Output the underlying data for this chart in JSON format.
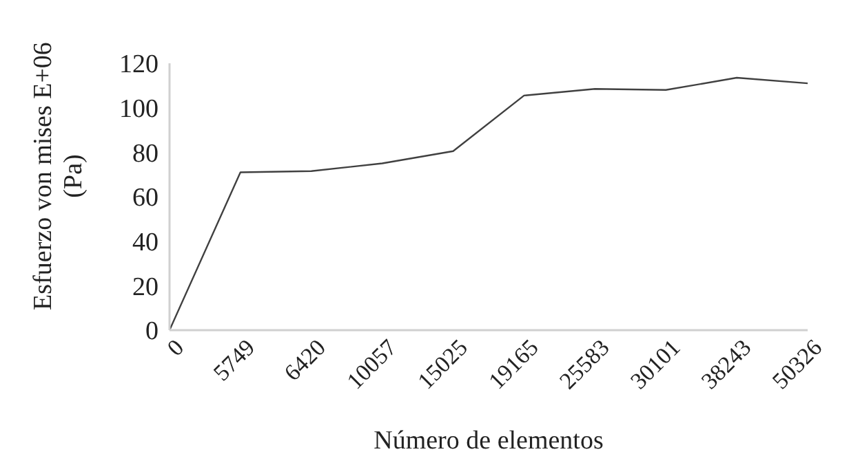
{
  "chart_data": {
    "type": "line",
    "xlabel": "Número de elementos",
    "ylabel": "Esfuerzo von mises E+06\n(Pa)",
    "categories": [
      "0",
      "5749",
      "6420",
      "10057",
      "15025",
      "19165",
      "25583",
      "30101",
      "38243",
      "50326"
    ],
    "series": [
      {
        "color": "#404040",
        "values": [
          0,
          71,
          71.5,
          75,
          80.5,
          105.5,
          108.5,
          108,
          113.5,
          111
        ]
      }
    ],
    "ylim": [
      0,
      120
    ],
    "yticks": [
      0,
      20,
      40,
      60,
      80,
      100,
      120
    ],
    "grid": false,
    "legend": false,
    "marker": "none",
    "line_style": "solid"
  }
}
